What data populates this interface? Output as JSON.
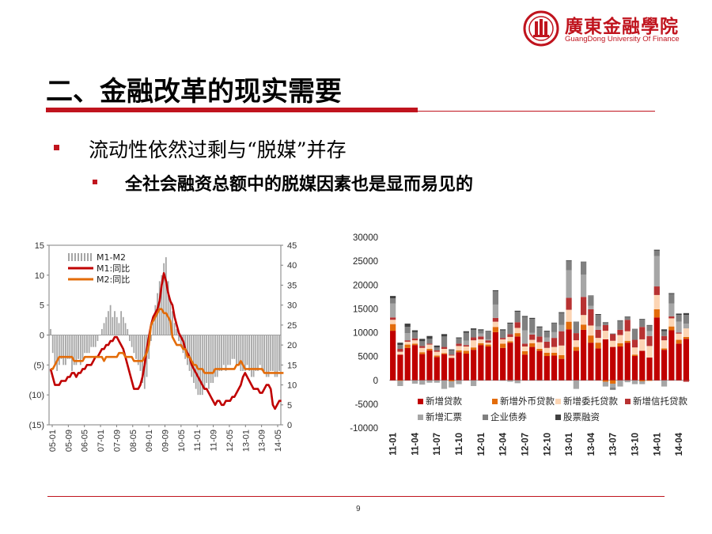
{
  "header": {
    "logo_cn": "廣東金融學院",
    "logo_en": "GuangDong University Of Finance",
    "colors": {
      "brand": "#c0141e"
    }
  },
  "title": "二、金融改革的现实需要",
  "bullets": [
    {
      "text": "流动性依然过剩与“脱媒”并存",
      "level": 1
    },
    {
      "text": "全社会融资总额中的脱媒因素也是显而易见的",
      "level": 2
    }
  ],
  "footer": {
    "page": "9"
  },
  "chart_data": [
    {
      "type": "line",
      "left_y_ticks": [
        "15",
        "10",
        "5",
        "0",
        "(5)",
        "(10)",
        "(15)"
      ],
      "left_ylim": [
        -15,
        15
      ],
      "right_y_ticks": [
        "45",
        "40",
        "35",
        "30",
        "25",
        "20",
        "15",
        "10",
        "5",
        "0"
      ],
      "right_ylim": [
        0,
        45
      ],
      "x_ticks": [
        "05-01",
        "05-09",
        "06-05",
        "07-01",
        "07-09",
        "08-05",
        "09-01",
        "09-09",
        "10-05",
        "11-01",
        "11-09",
        "12-05",
        "13-01",
        "13-09",
        "14-05"
      ],
      "legend_position": "top-left",
      "series": [
        {
          "name": "M1-M2",
          "kind": "bar",
          "axis": "left",
          "color": "#a6a6a6",
          "values": [
            1,
            -3,
            -5,
            -6,
            -5,
            -4,
            -5,
            -5,
            -4,
            -4,
            -6,
            -5,
            -5,
            -4,
            -5,
            -4,
            -3,
            -3,
            -3,
            -2,
            -2,
            -2,
            -1,
            0,
            1,
            2,
            3,
            4,
            5,
            3,
            4,
            3,
            2,
            4,
            3,
            2,
            1,
            -1,
            -2,
            -3,
            -4,
            -5,
            -6,
            -8,
            -9,
            -7,
            -4,
            -1,
            2,
            5,
            7,
            9,
            10,
            12,
            13,
            9,
            6,
            4,
            2,
            1,
            -1,
            -2,
            -3,
            -4,
            -5,
            -6,
            -7,
            -8,
            -9,
            -10,
            -10,
            -10,
            -9,
            -8,
            -9,
            -8,
            -8,
            -7,
            -7,
            -6,
            -6,
            -5,
            -6,
            -5,
            -5,
            -4,
            -4,
            -5,
            -5,
            -6,
            -6,
            -6,
            -5,
            -6,
            -7,
            -7,
            -6,
            -6,
            -5,
            -6,
            -6,
            -7,
            -7,
            -6,
            -6,
            -7,
            -7,
            -6
          ]
        },
        {
          "name": "M1:同比",
          "kind": "line",
          "axis": "right",
          "color": "#c00000",
          "values": [
            14,
            12,
            10,
            10,
            10,
            11,
            11,
            11,
            12,
            12,
            13,
            13,
            12,
            13,
            13,
            14,
            14,
            15,
            15,
            15,
            16,
            17,
            17,
            18,
            19,
            19,
            20,
            20,
            21,
            21,
            22,
            22,
            21,
            20,
            19,
            17,
            15,
            13,
            11,
            9,
            9,
            9,
            10,
            12,
            15,
            19,
            22,
            25,
            27,
            28,
            29,
            31,
            35,
            38,
            36,
            33,
            31,
            30,
            27,
            25,
            23,
            22,
            21,
            19,
            18,
            17,
            15,
            14,
            13,
            12,
            11,
            10,
            9,
            9,
            8,
            7,
            6,
            5,
            6,
            6,
            5,
            5,
            6,
            6,
            6,
            7,
            7,
            8,
            9,
            10,
            12,
            13,
            12,
            11,
            10,
            9,
            9,
            9,
            8,
            8,
            9,
            10,
            10,
            9,
            5,
            4,
            5,
            6,
            6
          ]
        },
        {
          "name": "M2:同比",
          "kind": "line",
          "axis": "right",
          "color": "#e36c0a",
          "values": [
            14,
            14,
            15,
            16,
            17,
            17,
            17,
            17,
            17,
            17,
            17,
            16,
            16,
            16,
            16,
            16,
            17,
            17,
            17,
            17,
            17,
            17,
            17,
            17,
            17,
            16,
            17,
            17,
            17,
            17,
            17,
            17,
            18,
            18,
            18,
            17,
            17,
            17,
            17,
            16,
            16,
            16,
            16,
            16,
            17,
            18,
            20,
            25,
            26,
            27,
            28,
            29,
            29,
            28,
            28,
            27,
            26,
            22,
            21,
            20,
            20,
            20,
            19,
            19,
            17,
            17,
            16,
            15,
            15,
            14,
            14,
            14,
            13,
            13,
            13,
            13,
            13,
            14,
            14,
            14,
            14,
            14,
            14,
            14,
            14,
            14,
            14,
            15,
            15,
            16,
            15,
            14,
            14,
            14,
            14,
            14,
            14,
            14,
            14,
            14,
            13,
            13,
            13,
            13,
            13,
            13,
            13,
            13,
            13,
            13
          ]
        }
      ]
    },
    {
      "type": "bar",
      "stacked": true,
      "ylim": [
        -10000,
        30000
      ],
      "y_ticks": [
        "30000",
        "25000",
        "20000",
        "15000",
        "10000",
        "5000",
        "0",
        "-5000",
        "-10000"
      ],
      "categories": [
        "11-01",
        "11-02",
        "11-03",
        "11-04",
        "11-05",
        "11-06",
        "11-07",
        "11-08",
        "11-09",
        "11-10",
        "11-11",
        "11-12",
        "12-01",
        "12-02",
        "12-03",
        "12-04",
        "12-05",
        "12-06",
        "12-07",
        "12-08",
        "12-09",
        "12-10",
        "12-11",
        "12-12",
        "13-01",
        "13-02",
        "13-03",
        "13-04",
        "13-05",
        "13-06",
        "13-07",
        "13-08",
        "13-09",
        "13-10",
        "13-11",
        "13-12",
        "14-01",
        "14-02",
        "14-03",
        "14-04",
        "14-05"
      ],
      "x_ticks": [
        "11-01",
        "11-04",
        "11-07",
        "11-10",
        "12-01",
        "12-04",
        "12-07",
        "12-10",
        "13-01",
        "13-04",
        "13-07",
        "13-10",
        "14-01",
        "14-04"
      ],
      "legend_position": "bottom",
      "series": [
        {
          "name": "新增贷款",
          "color": "#c00000",
          "values": [
            10400,
            5400,
            6800,
            7400,
            5500,
            6300,
            4900,
            5500,
            4700,
            5900,
            5600,
            6400,
            7400,
            7100,
            10100,
            6800,
            7900,
            9200,
            5400,
            7000,
            6200,
            5100,
            5200,
            4500,
            10700,
            6200,
            10600,
            7900,
            6700,
            8600,
            7000,
            7100,
            7900,
            5100,
            6200,
            4800,
            13200,
            6400,
            10500,
            7700,
            8700
          ]
        },
        {
          "name": "新增外币贷款",
          "color": "#e36c0a",
          "values": [
            1400,
            -100,
            700,
            300,
            400,
            300,
            300,
            200,
            -200,
            400,
            600,
            500,
            400,
            400,
            1100,
            900,
            300,
            700,
            700,
            800,
            400,
            700,
            600,
            800,
            1600,
            800,
            1100,
            1500,
            1200,
            -300,
            -700,
            700,
            400,
            300,
            -200,
            -100,
            1700,
            300,
            800,
            800,
            400
          ]
        },
        {
          "name": "新增委托贷款",
          "color": "#fcd5b4",
          "values": [
            900,
            600,
            600,
            700,
            900,
            900,
            800,
            900,
            500,
            900,
            900,
            1500,
            800,
            400,
            1100,
            900,
            900,
            1100,
            1000,
            700,
            1400,
            1000,
            1200,
            2000,
            2500,
            1400,
            2000,
            2100,
            1000,
            1800,
            1300,
            1700,
            2000,
            1500,
            2400,
            2400,
            3000,
            1700,
            1700,
            1300,
            1800
          ]
        },
        {
          "name": "新增信托贷款",
          "color": "#b83232",
          "values": [
            500,
            600,
            300,
            400,
            400,
            200,
            300,
            400,
            200,
            500,
            300,
            600,
            600,
            500,
            800,
            300,
            600,
            1200,
            600,
            1100,
            1200,
            1300,
            1900,
            3000,
            2500,
            1500,
            3800,
            3400,
            1700,
            1200,
            1400,
            1100,
            2400,
            1600,
            2600,
            2100,
            1800,
            900,
            400,
            200,
            -300
          ]
        },
        {
          "name": "新增汇票",
          "color": "#a6a6a6",
          "values": [
            2900,
            -1100,
            1500,
            -700,
            -900,
            -500,
            -500,
            -1800,
            -1300,
            -800,
            900,
            -1200,
            600,
            200,
            2800,
            -100,
            -300,
            -600,
            2800,
            400,
            -100,
            900,
            1200,
            1300,
            5800,
            -1800,
            4700,
            700,
            700,
            -1000,
            -800,
            -1300,
            -400,
            -800,
            -600,
            1000,
            6400,
            -1300,
            2700,
            2300,
            1000
          ]
        },
        {
          "name": "企业债券",
          "color": "#808080",
          "values": [
            1100,
            800,
            1300,
            1300,
            1000,
            1000,
            600,
            2200,
            900,
            1100,
            1700,
            1600,
            700,
            1700,
            2800,
            1600,
            2200,
            2200,
            2800,
            2900,
            1900,
            1200,
            1900,
            2500,
            2000,
            2300,
            2600,
            2100,
            2400,
            500,
            -500,
            1900,
            600,
            2200,
            1600,
            1200,
            1100,
            1000,
            2000,
            1400,
            1800
          ]
        },
        {
          "name": "股票融资",
          "color": "#404040",
          "values": [
            500,
            500,
            700,
            400,
            500,
            600,
            400,
            500,
            200,
            200,
            300,
            300,
            200,
            100,
            200,
            200,
            200,
            200,
            200,
            200,
            200,
            200,
            100,
            200,
            100,
            100,
            100,
            100,
            200,
            100,
            100,
            100,
            100,
            100,
            100,
            100,
            200,
            400,
            200,
            300,
            400
          ]
        }
      ]
    }
  ]
}
